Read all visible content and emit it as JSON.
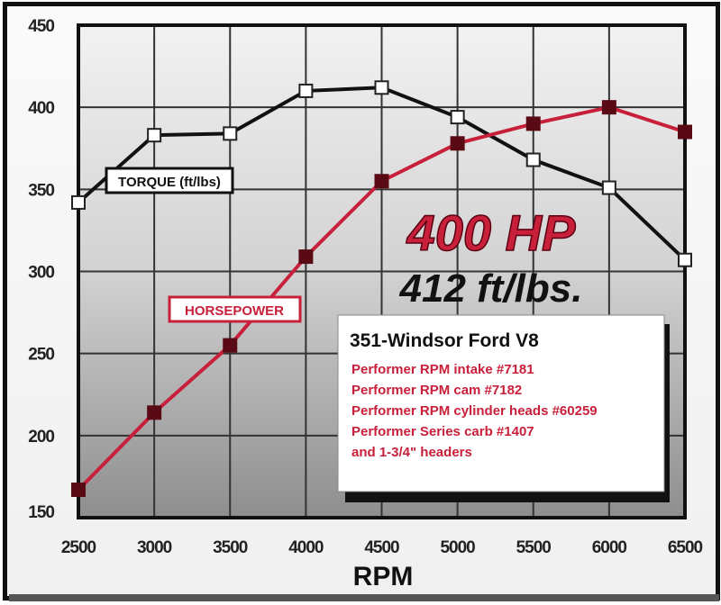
{
  "chart_data": {
    "type": "line",
    "x": [
      2500,
      3000,
      3500,
      4000,
      4500,
      5000,
      5500,
      6000,
      6500
    ],
    "xlabel": "RPM",
    "ylabel": "",
    "ylim": [
      150,
      450
    ],
    "xlim": [
      2500,
      6500
    ],
    "yticks": [
      150,
      200,
      250,
      300,
      350,
      400,
      450
    ],
    "xticks": [
      2500,
      3000,
      3500,
      4000,
      4500,
      5000,
      5500,
      6000,
      6500
    ],
    "grid": true,
    "series": [
      {
        "name": "TORQUE (ft/lbs)",
        "color": "#111111",
        "marker": "open-square",
        "values": [
          342,
          383,
          384,
          410,
          412,
          394,
          368,
          351,
          307
        ]
      },
      {
        "name": "HORSEPOWER",
        "color": "#c8203a",
        "marker": "filled-square",
        "values": [
          167,
          214,
          255,
          309,
          355,
          378,
          390,
          400,
          385
        ]
      }
    ],
    "annotations": {
      "peak_hp": "400 HP",
      "peak_torque": "412 ft/lbs.",
      "info_title": "351-Windsor Ford V8",
      "info_lines": [
        "Performer RPM intake #7181",
        "Performer RPM cam #7182",
        "Performer RPM cylinder heads #60259",
        "Performer Series carb #1407",
        "and 1-3/4\" headers"
      ]
    }
  }
}
